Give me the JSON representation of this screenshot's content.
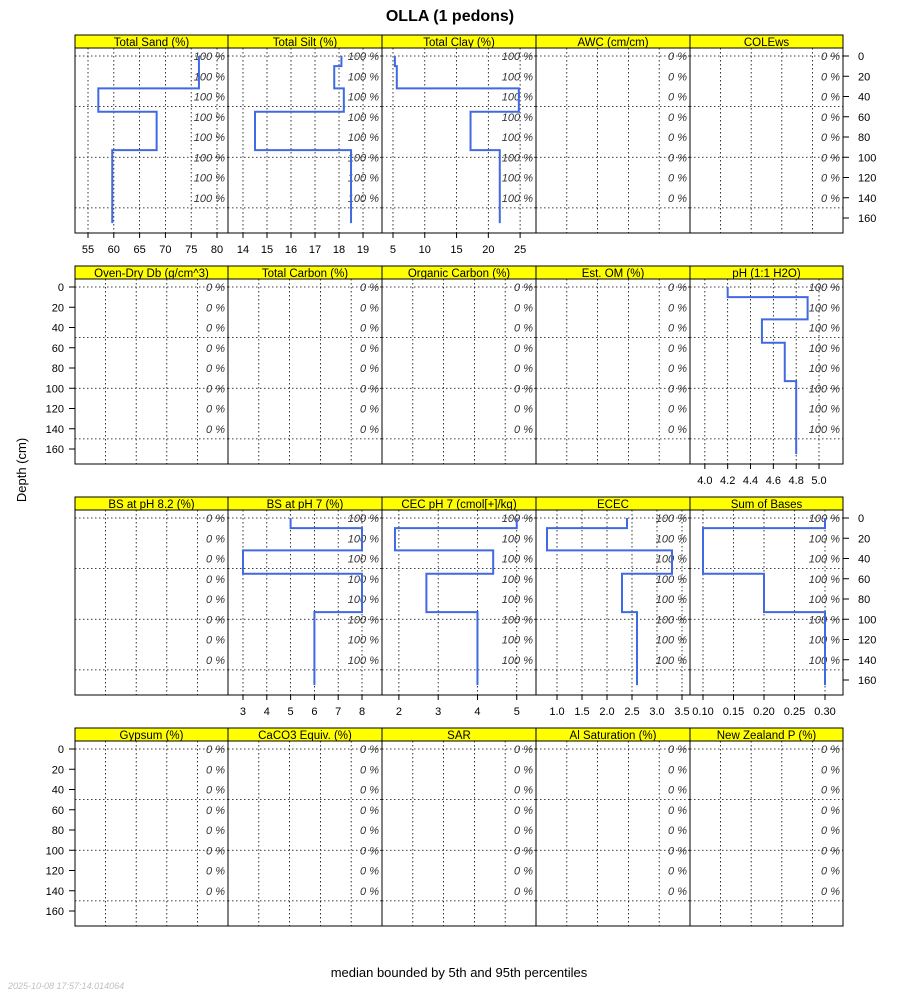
{
  "chart_data": {
    "type": "line",
    "title": "OLLA (1 pedons)",
    "ylabel": "Depth (cm)",
    "xlabel": "median bounded by 5th and 95th percentiles",
    "timestamp": "2025-10-08 17:57:14.014064",
    "ylim": [
      0,
      170
    ],
    "depth_ticks": [
      0,
      20,
      40,
      60,
      80,
      100,
      120,
      140,
      160
    ],
    "depth_grid": [
      0,
      50,
      100,
      150
    ],
    "horizon_depths": [
      0,
      10,
      32,
      55,
      93,
      165
    ],
    "line_color": "#4169e1",
    "strip_color": "#ffff00",
    "panels": [
      {
        "name": "Total Sand (%)",
        "pct": "100 %",
        "xlim": [
          52.48,
          82.13
        ],
        "ticks": [
          "55",
          "60",
          "65",
          "70",
          "75",
          "80"
        ],
        "tickvals": [
          55,
          60,
          65,
          70,
          75,
          80
        ],
        "values": [
          76.5,
          76.5,
          57.0,
          68.3,
          59.7
        ]
      },
      {
        "name": "Total Silt (%)",
        "pct": "100 %",
        "xlim": [
          13.375,
          19.79
        ],
        "ticks": [
          "14",
          "15",
          "16",
          "17",
          "18",
          "19"
        ],
        "tickvals": [
          14,
          15,
          16,
          17,
          18,
          19
        ],
        "values": [
          18.1,
          17.8,
          18.2,
          14.5,
          18.5
        ]
      },
      {
        "name": "Total Clay (%)",
        "pct": "100 %",
        "xlim": [
          3.27,
          27.5
        ],
        "ticks": [
          "5",
          "10",
          "15",
          "20",
          "25"
        ],
        "tickvals": [
          5,
          10,
          15,
          20,
          25
        ],
        "values": [
          5.3,
          5.6,
          24.8,
          17.2,
          21.8
        ]
      },
      {
        "name": "AWC (cm/cm)",
        "pct": "0 %"
      },
      {
        "name": "COLEws",
        "pct": "0 %"
      },
      {
        "name": "Oven-Dry Db (g/cm^3)",
        "pct": "0 %"
      },
      {
        "name": "Total Carbon (%)",
        "pct": "0 %"
      },
      {
        "name": "Organic Carbon (%)",
        "pct": "0 %"
      },
      {
        "name": "Est. OM (%)",
        "pct": "0 %"
      },
      {
        "name": "pH (1:1 H2O)",
        "pct": "100 %",
        "xlim": [
          3.87,
          5.21
        ],
        "ticks": [
          "4.0",
          "4.2",
          "4.4",
          "4.6",
          "4.8",
          "5.0"
        ],
        "tickvals": [
          4.0,
          4.2,
          4.4,
          4.6,
          4.8,
          5.0
        ],
        "values": [
          4.2,
          4.9,
          4.5,
          4.7,
          4.8
        ]
      },
      {
        "name": "BS at pH 8.2 (%)",
        "pct": "0 %"
      },
      {
        "name": "BS at pH 7 (%)",
        "pct": "100 %",
        "xlim": [
          2.37,
          8.84
        ],
        "ticks": [
          "3",
          "4",
          "5",
          "6",
          "7",
          "8"
        ],
        "tickvals": [
          3,
          4,
          5,
          6,
          7,
          8
        ],
        "values": [
          5,
          8,
          3,
          8,
          6
        ]
      },
      {
        "name": "CEC pH 7 (cmol[+]/kg)",
        "pct": "100 %",
        "xlim": [
          1.57,
          5.49
        ],
        "ticks": [
          "2",
          "3",
          "4",
          "5"
        ],
        "tickvals": [
          2,
          3,
          4,
          5
        ],
        "values": [
          5.0,
          1.9,
          4.4,
          2.7,
          4.0
        ]
      },
      {
        "name": "ECEC",
        "pct": "100 %",
        "xlim": [
          0.58,
          3.66
        ],
        "ticks": [
          "1.0",
          "1.5",
          "2.0",
          "2.5",
          "3.0",
          "3.5"
        ],
        "tickvals": [
          1.0,
          1.5,
          2.0,
          2.5,
          3.0,
          3.5
        ],
        "values": [
          2.4,
          0.8,
          3.3,
          2.3,
          2.6
        ]
      },
      {
        "name": "Sum of Bases",
        "pct": "100 %",
        "xlim": [
          0.0787,
          0.3295
        ],
        "ticks": [
          "0.10",
          "0.15",
          "0.20",
          "0.25",
          "0.30"
        ],
        "tickvals": [
          0.1,
          0.15,
          0.2,
          0.25,
          0.3
        ],
        "values": [
          0.3,
          0.1,
          0.1,
          0.2,
          0.3
        ]
      },
      {
        "name": "Gypsum (%)",
        "pct": "0 %"
      },
      {
        "name": "CaCO3 Equiv. (%)",
        "pct": "0 %"
      },
      {
        "name": "SAR",
        "pct": "0 %"
      },
      {
        "name": "Al Saturation (%)",
        "pct": "0 %"
      },
      {
        "name": "New Zealand P (%)",
        "pct": "0 %"
      }
    ]
  }
}
